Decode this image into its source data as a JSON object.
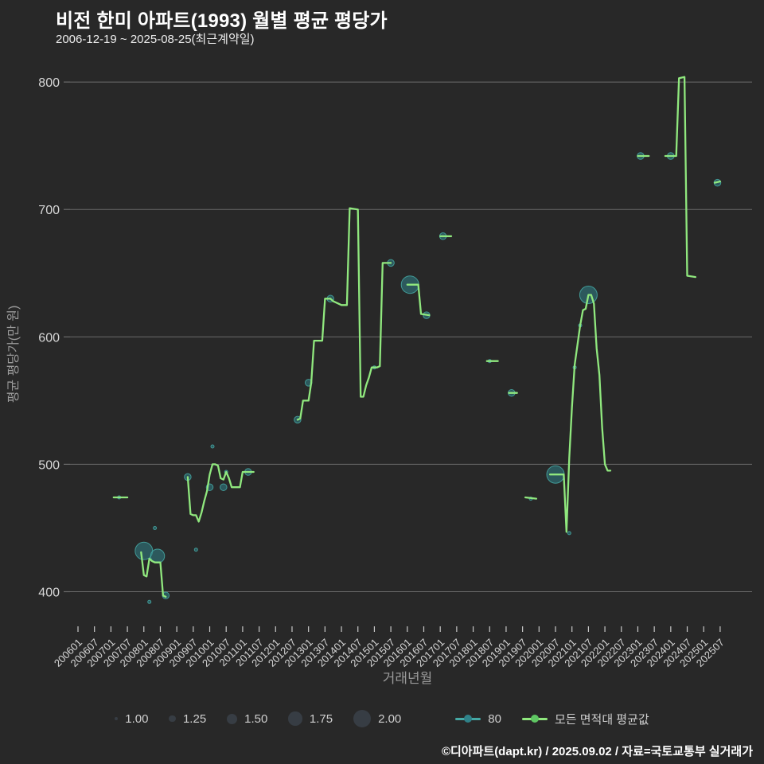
{
  "title": "비전 한미 아파트(1993) 월별 평균 평당가",
  "subtitle": "2006-12-19 ~ 2025-08-25(최근계약일)",
  "footer": "©디아파트(dapt.kr) / 2025.09.02 / 자료=국토교통부 실거래가",
  "colors": {
    "background": "#282828",
    "grid": "#6b6b6b",
    "tick_label": "#d6d6d6",
    "axis_title": "#9a9a9a",
    "green_line": "#90e87e",
    "green_dot": "#5fc763",
    "teal_fill": "#2f8289",
    "teal_stroke": "#45a9a5",
    "teal_line": "#45a9a5",
    "size_dot": "#373d44",
    "legend_text": "#cfcfcf"
  },
  "chart_data": {
    "type": "line+scatter",
    "title": "비전 한미 아파트(1993) 월별 평균 평당가",
    "xlabel": "거래년월",
    "ylabel": "평균 평당가(만 원)",
    "y_ticks": [
      400,
      500,
      600,
      700,
      800
    ],
    "ylim": [
      370,
      820
    ],
    "grid": "horizontal",
    "legend_position": "bottom",
    "x_ticks": [
      "200601",
      "200607",
      "200701",
      "200707",
      "200801",
      "200807",
      "200901",
      "200907",
      "201001",
      "201007",
      "201101",
      "201107",
      "201201",
      "201207",
      "201301",
      "201307",
      "201401",
      "201407",
      "201501",
      "201507",
      "201601",
      "201607",
      "201701",
      "201707",
      "201801",
      "201807",
      "201901",
      "201907",
      "202001",
      "202007",
      "202101",
      "202107",
      "202201",
      "202207",
      "202301",
      "202307",
      "202401",
      "202407",
      "202501",
      "202507"
    ],
    "size_legend": [
      "1.00",
      "1.25",
      "1.50",
      "1.75",
      "2.00"
    ],
    "series": [
      {
        "name": "80",
        "type": "scatter",
        "point_format": [
          "yyyymm",
          "price",
          "bubble_size"
        ],
        "points": [
          [
            "200704",
            474,
            1.0
          ],
          [
            "200801",
            432,
            2.0
          ],
          [
            "200803",
            392,
            1.0
          ],
          [
            "200805",
            450,
            1.0
          ],
          [
            "200806",
            428,
            1.75
          ],
          [
            "200809",
            397,
            1.25
          ],
          [
            "200905",
            490,
            1.25
          ],
          [
            "200908",
            433,
            1.0
          ],
          [
            "201001",
            482,
            1.25
          ],
          [
            "201002",
            514,
            1.0
          ],
          [
            "201006",
            482,
            1.25
          ],
          [
            "201007",
            494,
            1.0
          ],
          [
            "201103",
            494,
            1.25
          ],
          [
            "201209",
            535,
            1.25
          ],
          [
            "201301",
            564,
            1.25
          ],
          [
            "201309",
            630,
            1.25
          ],
          [
            "201501",
            576,
            1.0
          ],
          [
            "201507",
            658,
            1.25
          ],
          [
            "201602",
            641,
            2.0
          ],
          [
            "201608",
            617,
            1.25
          ],
          [
            "201702",
            679,
            1.25
          ],
          [
            "201807",
            581,
            1.0
          ],
          [
            "201903",
            556,
            1.25
          ],
          [
            "201910",
            473,
            1.0
          ],
          [
            "202007",
            492,
            2.0
          ],
          [
            "202012",
            446,
            1.0
          ],
          [
            "202102",
            576,
            1.0
          ],
          [
            "202104",
            609,
            1.0
          ],
          [
            "202107",
            633,
            2.0
          ],
          [
            "202302",
            742,
            1.25
          ],
          [
            "202401",
            742,
            1.25
          ],
          [
            "202506",
            721,
            1.25
          ]
        ]
      },
      {
        "name": "모든 면적대 평균값",
        "type": "line",
        "point_format": [
          "yyyymm",
          "price"
        ],
        "segments": [
          [
            [
              "200702",
              474
            ],
            [
              "200707",
              474
            ]
          ],
          [
            [
              "200712",
              431
            ],
            [
              "200801",
              413
            ],
            [
              "200802",
              412
            ],
            [
              "200803",
              426
            ],
            [
              "200804",
              424
            ],
            [
              "200805",
              423
            ],
            [
              "200807",
              423
            ],
            [
              "200808",
              397
            ],
            [
              "200809",
              396
            ]
          ],
          [
            [
              "200905",
              490
            ],
            [
              "200906",
              461
            ],
            [
              "200907",
              460
            ],
            [
              "200908",
              460
            ],
            [
              "200909",
              455
            ],
            [
              "200910",
              462
            ],
            [
              "200911",
              471
            ],
            [
              "200912",
              479
            ],
            [
              "201001",
              492
            ],
            [
              "201002",
              500
            ],
            [
              "201003",
              500
            ],
            [
              "201004",
              499
            ],
            [
              "201005",
              489
            ],
            [
              "201006",
              488
            ],
            [
              "201007",
              494
            ],
            [
              "201008",
              489
            ],
            [
              "201009",
              482
            ],
            [
              "201012",
              482
            ],
            [
              "201101",
              494
            ],
            [
              "201105",
              494
            ]
          ],
          [
            [
              "201209",
              535
            ],
            [
              "201210",
              536
            ],
            [
              "201211",
              550
            ],
            [
              "201301",
              550
            ],
            [
              "201302",
              564
            ],
            [
              "201303",
              597
            ],
            [
              "201306",
              597
            ],
            [
              "201307",
              630
            ],
            [
              "201309",
              630
            ],
            [
              "201310",
              628
            ],
            [
              "201312",
              626
            ],
            [
              "201401",
              625
            ],
            [
              "201403",
              625
            ],
            [
              "201404",
              701
            ],
            [
              "201407",
              700
            ],
            [
              "201408",
              553
            ],
            [
              "201409",
              553
            ],
            [
              "201410",
              562
            ],
            [
              "201411",
              568
            ],
            [
              "201412",
              576
            ],
            [
              "201502",
              576
            ],
            [
              "201503",
              577
            ],
            [
              "201504",
              658
            ],
            [
              "201507",
              658
            ]
          ],
          [
            [
              "201601",
              641
            ],
            [
              "201605",
              641
            ],
            [
              "201606",
              618
            ],
            [
              "201609",
              617
            ]
          ],
          [
            [
              "201701",
              679
            ],
            [
              "201705",
              679
            ]
          ],
          [
            [
              "201806",
              581
            ],
            [
              "201810",
              581
            ]
          ],
          [
            [
              "201902",
              556
            ],
            [
              "201905",
              556
            ]
          ],
          [
            [
              "201908",
              474
            ],
            [
              "201912",
              473
            ]
          ],
          [
            [
              "202005",
              492
            ],
            [
              "202010",
              492
            ],
            [
              "202011",
              447
            ],
            [
              "202012",
              505
            ],
            [
              "202101",
              545
            ],
            [
              "202102",
              578
            ],
            [
              "202104",
              609
            ],
            [
              "202105",
              621
            ],
            [
              "202106",
              622
            ],
            [
              "202107",
              633
            ],
            [
              "202108",
              633
            ],
            [
              "202109",
              626
            ],
            [
              "202110",
              591
            ],
            [
              "202111",
              570
            ],
            [
              "202112",
              529
            ],
            [
              "202201",
              500
            ],
            [
              "202202",
              495
            ],
            [
              "202203",
              495
            ]
          ],
          [
            [
              "202301",
              742
            ],
            [
              "202305",
              742
            ]
          ],
          [
            [
              "202311",
              742
            ],
            [
              "202403",
              742
            ],
            [
              "202404",
              803
            ],
            [
              "202406",
              804
            ],
            [
              "202407",
              648
            ],
            [
              "202410",
              647
            ]
          ],
          [
            [
              "202505",
              721
            ],
            [
              "202507",
              722
            ]
          ]
        ]
      }
    ]
  }
}
